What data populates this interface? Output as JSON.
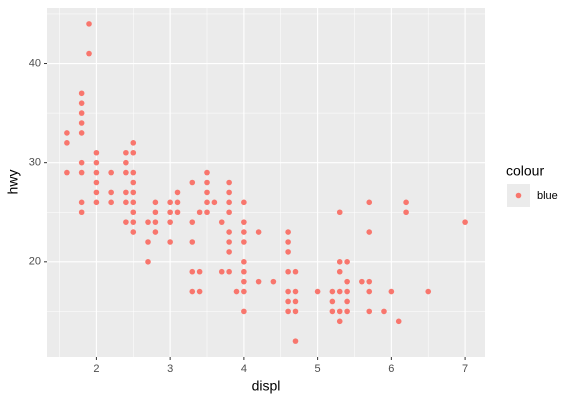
{
  "chart_data": {
    "type": "scatter",
    "x_label": "displ",
    "y_label": "hwy",
    "xlim": [
      1.33,
      7.27
    ],
    "ylim": [
      10.4,
      45.6
    ],
    "xticks": [
      2,
      3,
      4,
      5,
      6,
      7
    ],
    "yticks": [
      20,
      30,
      40
    ],
    "x_minor_grid": [
      1.5,
      2.5,
      3.5,
      4.5,
      5.5,
      6.5
    ],
    "y_minor_grid": [
      15,
      25,
      35,
      45
    ],
    "grid": true,
    "legend_title": "colour",
    "legend_position": "right",
    "series": [
      {
        "name": "blue",
        "color": "#F8766D",
        "x": [
          1.6,
          1.6,
          1.6,
          1.8,
          1.8,
          1.8,
          1.8,
          1.8,
          1.8,
          1.8,
          1.8,
          1.8,
          1.9,
          1.9,
          2.0,
          2.0,
          2.0,
          2.0,
          2.0,
          2.0,
          2.2,
          2.2,
          2.2,
          2.4,
          2.4,
          2.4,
          2.4,
          2.4,
          2.4,
          2.5,
          2.5,
          2.5,
          2.5,
          2.5,
          2.5,
          2.5,
          2.5,
          2.5,
          2.7,
          2.7,
          2.7,
          2.8,
          2.8,
          2.8,
          2.8,
          3.0,
          3.0,
          3.0,
          3.0,
          3.1,
          3.1,
          3.1,
          3.3,
          3.3,
          3.3,
          3.3,
          3.3,
          3.4,
          3.4,
          3.4,
          3.5,
          3.5,
          3.5,
          3.5,
          3.5,
          3.6,
          3.7,
          3.7,
          3.8,
          3.8,
          3.8,
          3.8,
          3.8,
          3.8,
          3.8,
          3.8,
          3.9,
          4.0,
          4.0,
          4.0,
          4.0,
          4.0,
          4.0,
          4.0,
          4.0,
          4.0,
          4.2,
          4.2,
          4.4,
          4.6,
          4.6,
          4.6,
          4.6,
          4.6,
          4.6,
          4.6,
          4.7,
          4.7,
          4.7,
          4.7,
          4.7,
          5.0,
          5.2,
          5.2,
          5.2,
          5.3,
          5.3,
          5.3,
          5.3,
          5.3,
          5.3,
          5.4,
          5.4,
          5.4,
          5.4,
          5.4,
          5.6,
          5.7,
          5.7,
          5.7,
          5.7,
          5.7,
          5.9,
          6.0,
          6.1,
          6.2,
          6.2,
          6.5,
          7.0
        ],
        "values": [
          33,
          32,
          29,
          37,
          36,
          35,
          34,
          33,
          30,
          29,
          26,
          25,
          44,
          41,
          31,
          30,
          29,
          28,
          27,
          26,
          29,
          27,
          26,
          31,
          30,
          29,
          27,
          26,
          24,
          32,
          31,
          29,
          28,
          27,
          26,
          25,
          24,
          23,
          24,
          22,
          20,
          26,
          25,
          24,
          23,
          26,
          25,
          24,
          22,
          27,
          26,
          25,
          28,
          24,
          22,
          19,
          17,
          25,
          19,
          17,
          29,
          28,
          27,
          26,
          25,
          26,
          24,
          19,
          28,
          27,
          26,
          25,
          23,
          22,
          21,
          19,
          17,
          26,
          24,
          23,
          22,
          20,
          19,
          18,
          17,
          15,
          23,
          18,
          18,
          23,
          22,
          21,
          19,
          17,
          16,
          15,
          19,
          17,
          16,
          15,
          12,
          17,
          17,
          16,
          15,
          25,
          20,
          19,
          17,
          15,
          14,
          20,
          18,
          17,
          16,
          15,
          18,
          26,
          23,
          18,
          17,
          15,
          15,
          17,
          14,
          26,
          25,
          17,
          24
        ]
      }
    ]
  }
}
